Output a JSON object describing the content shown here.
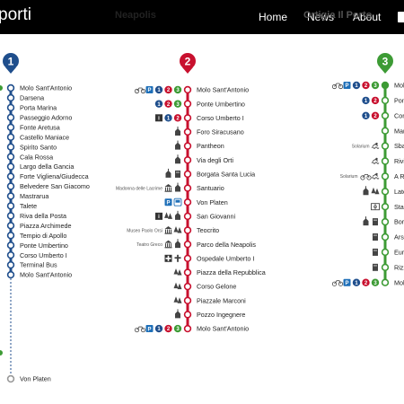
{
  "header": {
    "brand": "porti",
    "tabs": [
      "Neapolis",
      "Ortigia Il Porto"
    ],
    "nav": [
      "Home",
      "News",
      "About"
    ]
  },
  "colors": {
    "line1": "#1f4e8c",
    "line2": "#c8102e",
    "line3": "#3d9b35",
    "icon_dark": "#444444"
  },
  "lines": [
    {
      "number": "1",
      "color": "#1f4e8c",
      "stations": [
        {
          "name": "Molo Sant'Antonio",
          "icons": []
        },
        {
          "name": "Darsena",
          "icons": []
        },
        {
          "name": "Porta Marina",
          "icons": []
        },
        {
          "name": "Passeggio Adorno",
          "icons": []
        },
        {
          "name": "Fonte Aretusa",
          "icons": []
        },
        {
          "name": "Castello Maniace",
          "icons": []
        },
        {
          "name": "Spirito Santo",
          "icons": []
        },
        {
          "name": "Cala Rossa",
          "icons": []
        },
        {
          "name": "Largo della Gancia",
          "icons": []
        },
        {
          "name": "Forte Vigliena/Giudecca",
          "icons": []
        },
        {
          "name": "Belvedere San Giacomo",
          "icons": []
        },
        {
          "name": "Mastrarua",
          "icons": []
        },
        {
          "name": "Talete",
          "icons": []
        },
        {
          "name": "Riva della Posta",
          "icons": []
        },
        {
          "name": "Piazza Archimede",
          "icons": []
        },
        {
          "name": "Tempio di Apollo",
          "icons": []
        },
        {
          "name": "Ponte Umbertino",
          "icons": []
        },
        {
          "name": "Corso Umberto I",
          "icons": []
        },
        {
          "name": "Terminal Bus",
          "icons": []
        },
        {
          "name": "Molo Sant'Antonio",
          "icons": []
        },
        {
          "name": "Von Platen",
          "icons": [],
          "detached": true
        }
      ]
    },
    {
      "number": "2",
      "color": "#c8102e",
      "stations": [
        {
          "name": "Molo Sant'Antonio",
          "icons": [
            "bike",
            "parking",
            "1",
            "2",
            "3"
          ]
        },
        {
          "name": "Ponte Umbertino",
          "icons": [
            "1",
            "2",
            "3"
          ]
        },
        {
          "name": "Corso Umberto I",
          "icons": [
            "info",
            "1",
            "2"
          ]
        },
        {
          "name": "Foro Siracusano",
          "icons": [
            "church"
          ]
        },
        {
          "name": "Pantheon",
          "icons": [
            "church"
          ]
        },
        {
          "name": "Via degli Orti",
          "icons": [
            "church"
          ]
        },
        {
          "name": "Borgata Santa Lucia",
          "icons": [
            "church",
            "building"
          ]
        },
        {
          "name": "Santuario",
          "icons": [
            "museum",
            "church"
          ],
          "side": "Madonna delle Lacrime"
        },
        {
          "name": "Von Platen",
          "icons": [
            "parking",
            "bus"
          ]
        },
        {
          "name": "San Giovanni",
          "icons": [
            "info",
            "trees",
            "church"
          ]
        },
        {
          "name": "Teocrito",
          "icons": [
            "museum",
            "trees"
          ],
          "side": "Museo Paolo Orsi"
        },
        {
          "name": "Parco della Neapolis",
          "icons": [
            "museum",
            "church"
          ],
          "side": "Teatro Greco"
        },
        {
          "name": "Ospedale Umberto I",
          "icons": [
            "hospital",
            "cross"
          ]
        },
        {
          "name": "Piazza della Repubblica",
          "icons": [
            "trees"
          ]
        },
        {
          "name": "Corso Gelone",
          "icons": [
            "trees"
          ]
        },
        {
          "name": "Piazzale Marconi",
          "icons": [
            "trees"
          ]
        },
        {
          "name": "Pozzo Ingegnere",
          "icons": [
            "church"
          ]
        },
        {
          "name": "Molo Sant'Antonio",
          "icons": [
            "bike",
            "parking",
            "1",
            "2",
            "3"
          ]
        }
      ]
    },
    {
      "number": "3",
      "color": "#3d9b35",
      "stations": [
        {
          "name": "Molo",
          "icons": [
            "bike",
            "parking",
            "1",
            "2",
            "3"
          ]
        },
        {
          "name": "Pont",
          "icons": [
            "1",
            "2"
          ]
        },
        {
          "name": "Cors",
          "icons": [
            "1",
            "2"
          ]
        },
        {
          "name": "Mari",
          "icons": []
        },
        {
          "name": "Sbar",
          "icons": [
            "swim"
          ],
          "side": "Solarium"
        },
        {
          "name": "Rivie",
          "icons": [
            "swim"
          ]
        },
        {
          "name": "A Ru",
          "icons": [
            "bike",
            "swim"
          ],
          "side": "Solarium"
        },
        {
          "name": "Latom",
          "icons": [
            "church",
            "trees"
          ]
        },
        {
          "name": "Stadi",
          "icons": [
            "stadium"
          ]
        },
        {
          "name": "Borg",
          "icons": [
            "church",
            "building"
          ]
        },
        {
          "name": "Arse",
          "icons": [
            "building"
          ]
        },
        {
          "name": "Euripi",
          "icons": [
            "building"
          ]
        },
        {
          "name": "Rizza",
          "icons": [
            "building"
          ]
        },
        {
          "name": "Molo",
          "icons": [
            "bike",
            "parking",
            "1",
            "2",
            "3"
          ]
        }
      ]
    }
  ]
}
